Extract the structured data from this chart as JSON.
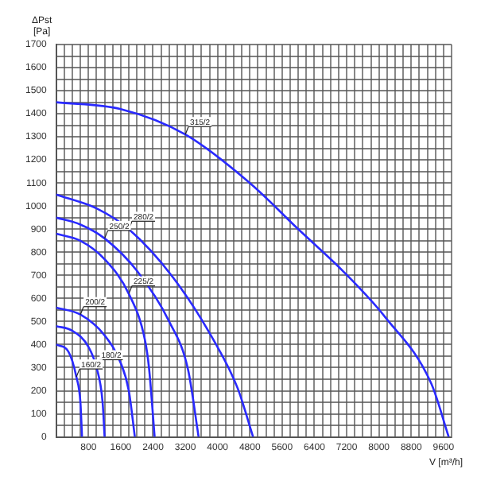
{
  "chart_data": {
    "type": "line",
    "xlabel": "V [m³/h]",
    "ylabel": "ΔPst [Pa]",
    "marker": "none",
    "grid": true,
    "legend": false,
    "xlim": [
      0,
      9800
    ],
    "ylim": [
      0,
      1700
    ],
    "xticks": [
      {
        "value": 0,
        "label": null
      },
      {
        "value": 200,
        "label": null
      },
      {
        "value": 400,
        "label": null
      },
      {
        "value": 600,
        "label": null
      },
      800,
      {
        "value": 1000,
        "label": null
      },
      {
        "value": 1200,
        "label": null
      },
      {
        "value": 1400,
        "label": null
      },
      1600,
      {
        "value": 1800,
        "label": null
      },
      {
        "value": 2000,
        "label": null
      },
      {
        "value": 2200,
        "label": null
      },
      2400,
      {
        "value": 2600,
        "label": null
      },
      {
        "value": 2800,
        "label": null
      },
      {
        "value": 3000,
        "label": null
      },
      3200,
      {
        "value": 3400,
        "label": null
      },
      {
        "value": 3600,
        "label": null
      },
      {
        "value": 3800,
        "label": null
      },
      4000,
      {
        "value": 4200,
        "label": null
      },
      {
        "value": 4400,
        "label": null
      },
      {
        "value": 4600,
        "label": null
      },
      4800,
      {
        "value": 5000,
        "label": null
      },
      {
        "value": 5200,
        "label": null
      },
      {
        "value": 5400,
        "label": null
      },
      5600,
      {
        "value": 5800,
        "label": null
      },
      {
        "value": 6000,
        "label": null
      },
      {
        "value": 6200,
        "label": null
      },
      6400,
      {
        "value": 6600,
        "label": null
      },
      {
        "value": 6800,
        "label": null
      },
      {
        "value": 7000,
        "label": null
      },
      7200,
      {
        "value": 7400,
        "label": null
      },
      {
        "value": 7600,
        "label": null
      },
      {
        "value": 7800,
        "label": null
      },
      8000,
      {
        "value": 8200,
        "label": null
      },
      {
        "value": 8400,
        "label": null
      },
      {
        "value": 8600,
        "label": null
      },
      8800,
      {
        "value": 9000,
        "label": null
      },
      {
        "value": 9200,
        "label": null
      },
      {
        "value": 9400,
        "label": null
      },
      9600,
      {
        "value": 9800,
        "label": null
      }
    ],
    "yticks": [
      0,
      {
        "value": 50,
        "label": null
      },
      100,
      {
        "value": 150,
        "label": null
      },
      200,
      {
        "value": 250,
        "label": null
      },
      300,
      {
        "value": 350,
        "label": null
      },
      400,
      {
        "value": 450,
        "label": null
      },
      500,
      {
        "value": 550,
        "label": null
      },
      600,
      {
        "value": 650,
        "label": null
      },
      700,
      {
        "value": 750,
        "label": null
      },
      800,
      {
        "value": 850,
        "label": null
      },
      900,
      {
        "value": 950,
        "label": null
      },
      1000,
      {
        "value": 1050,
        "label": null
      },
      1100,
      {
        "value": 1150,
        "label": null
      },
      1200,
      {
        "value": 1250,
        "label": null
      },
      1300,
      {
        "value": 1350,
        "label": null
      },
      1400,
      {
        "value": 1450,
        "label": null
      },
      1500,
      {
        "value": 1550,
        "label": null
      },
      1600,
      {
        "value": 1650,
        "label": null
      },
      1700
    ],
    "series": [
      {
        "color": "#2a2aff",
        "x": [
          0,
          1600,
          3200,
          4800,
          6000,
          7100,
          8150,
          9300,
          9730
        ],
        "values": [
          1450,
          1420,
          1310,
          1100,
          900,
          720,
          520,
          230,
          0
        ]
      },
      {
        "color": "#2a2aff",
        "x": [
          0,
          1000,
          1800,
          2900,
          3900,
          4500,
          4880
        ],
        "values": [
          1050,
          990,
          900,
          690,
          420,
          210,
          0
        ]
      },
      {
        "color": "#2a2aff",
        "x": [
          0,
          600,
          1200,
          2000,
          2800,
          3270,
          3530
        ],
        "values": [
          950,
          920,
          860,
          720,
          500,
          290,
          0
        ]
      },
      {
        "color": "#2a2aff",
        "x": [
          0,
          600,
          1200,
          1800,
          2200,
          2300,
          2440
        ],
        "values": [
          880,
          850,
          770,
          620,
          420,
          300,
          0
        ]
      },
      {
        "color": "#2a2aff",
        "x": [
          0,
          600,
          1200,
          1600,
          1800,
          1950
        ],
        "values": [
          560,
          530,
          440,
          320,
          200,
          0
        ]
      },
      {
        "color": "#2a2aff",
        "x": [
          0,
          400,
          800,
          1000,
          1150,
          1200
        ],
        "values": [
          480,
          460,
          390,
          300,
          150,
          0
        ]
      },
      {
        "color": "#2a2aff",
        "x": [
          0,
          300,
          500,
          600,
          640
        ],
        "values": [
          400,
          370,
          260,
          150,
          0
        ]
      }
    ],
    "annotations": [
      {
        "text": "315/2",
        "x": 3200,
        "y": 1310
      },
      {
        "text": "280/2",
        "x": 1800,
        "y": 900
      },
      {
        "text": "250/2",
        "x": 1200,
        "y": 860
      },
      {
        "text": "225/2",
        "x": 1800,
        "y": 620
      },
      {
        "text": "200/2",
        "x": 600,
        "y": 530
      },
      {
        "text": "180/2",
        "x": 1000,
        "y": 300
      },
      {
        "text": "160/2",
        "x": 500,
        "y": 260
      }
    ]
  }
}
